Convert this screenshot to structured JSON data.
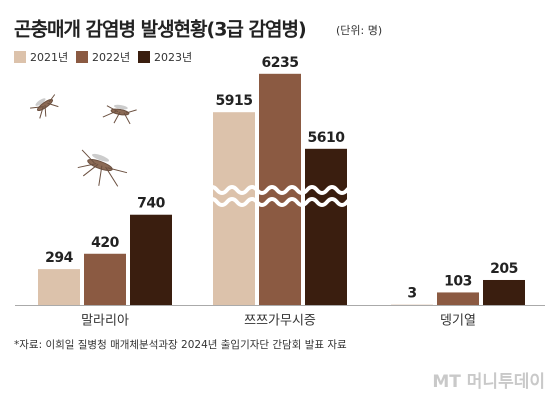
{
  "chart_data": {
    "type": "bar",
    "title": "곤충매개 감염병 발생현황(3급 감염병)",
    "subtitle": "(단위: 명)",
    "categories": [
      "말라리아",
      "쯔쯔가무시증",
      "뎅기열"
    ],
    "series": [
      {
        "name": "2021년",
        "color": "#dcc2ab",
        "values": [
          294,
          5915,
          3
        ]
      },
      {
        "name": "2022년",
        "color": "#8b5a42",
        "values": [
          420,
          6235,
          103
        ]
      },
      {
        "name": "2023년",
        "color": "#3a1e0f",
        "values": [
          740,
          5610,
          205
        ]
      }
    ],
    "source": "*자료: 이희일 질병청 매개체분석과장 2024년 출입기자단 간담회 발표 자료",
    "watermark": "MT 머니투데이"
  }
}
